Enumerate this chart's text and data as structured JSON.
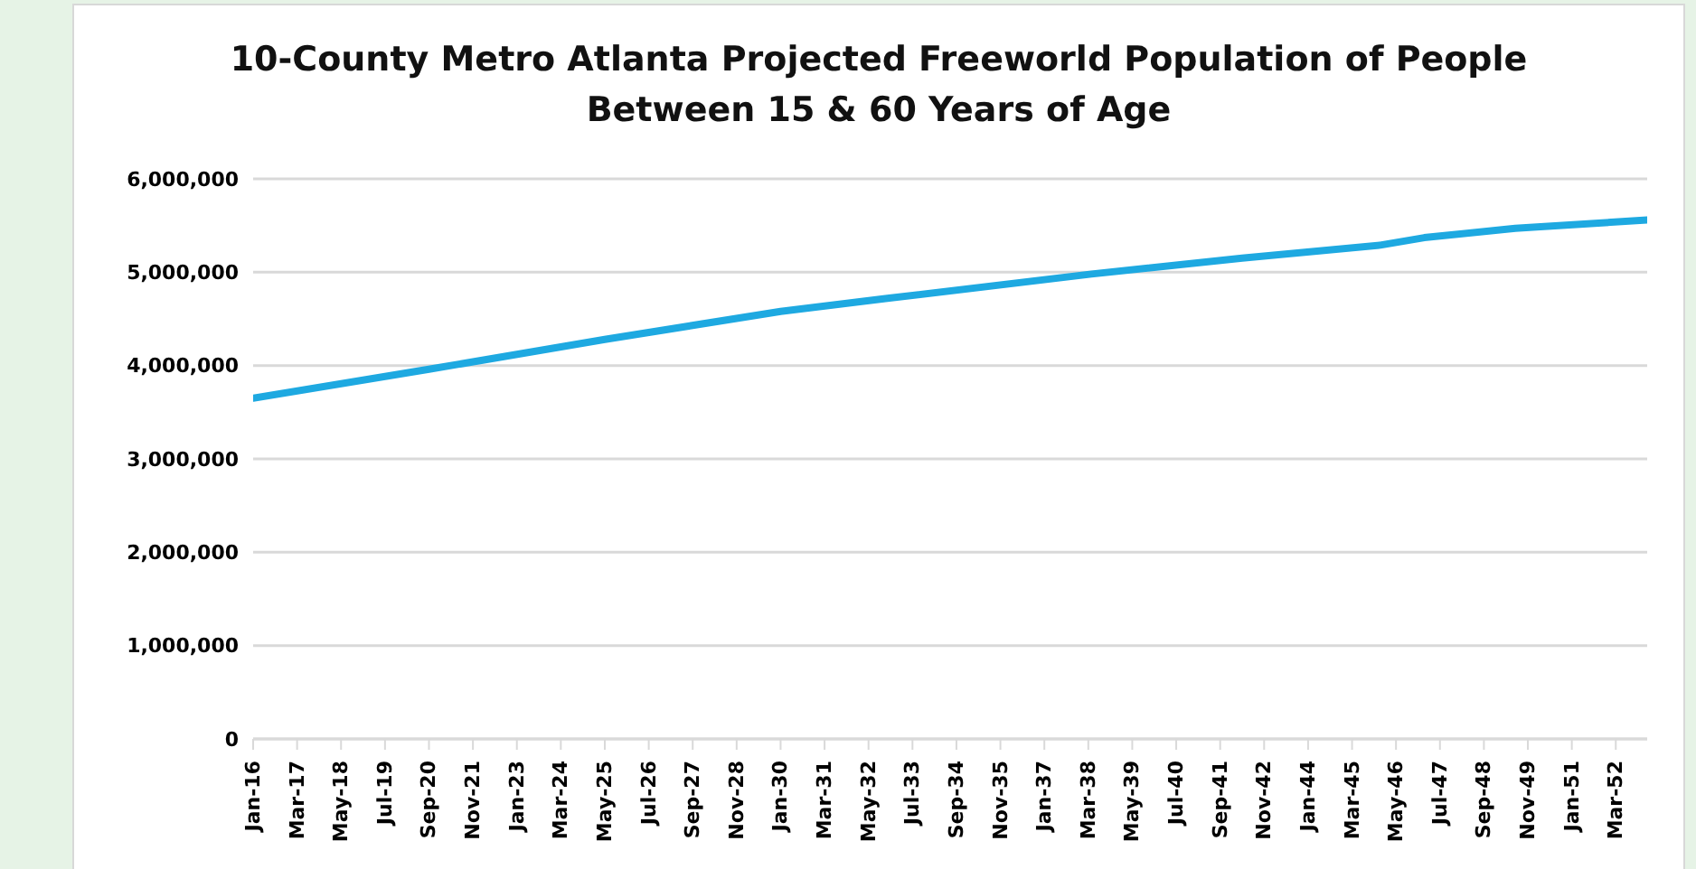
{
  "chart_data": {
    "type": "line",
    "title": "10-County Metro Atlanta Projected Freeworld Population of People Between 15 & 60 Years of Age",
    "x": [
      "2016-01",
      "2020-09",
      "2025-05",
      "2030-01",
      "2032-11",
      "2038-04",
      "2042-04",
      "2045-12",
      "2047-02",
      "2049-07",
      "2053-01"
    ],
    "series": [
      {
        "color": "#1ea9e1",
        "values": [
          3650000,
          3960000,
          4280000,
          4580000,
          4720000,
          4980000,
          5150000,
          5290000,
          5370000,
          5470000,
          5560000
        ]
      }
    ],
    "xlim": [
      "2016-01",
      "2053-01"
    ],
    "xticks": [
      {
        "value": "2016-01",
        "label": "Jan-16"
      },
      {
        "value": "2017-03",
        "label": "Mar-17"
      },
      {
        "value": "2018-05",
        "label": "May-18"
      },
      {
        "value": "2019-07",
        "label": "Jul-19"
      },
      {
        "value": "2020-09",
        "label": "Sep-20"
      },
      {
        "value": "2021-11",
        "label": "Nov-21"
      },
      {
        "value": "2023-01",
        "label": "Jan-23"
      },
      {
        "value": "2024-03",
        "label": "Mar-24"
      },
      {
        "value": "2025-05",
        "label": "May-25"
      },
      {
        "value": "2026-07",
        "label": "Jul-26"
      },
      {
        "value": "2027-09",
        "label": "Sep-27"
      },
      {
        "value": "2028-11",
        "label": "Nov-28"
      },
      {
        "value": "2030-01",
        "label": "Jan-30"
      },
      {
        "value": "2031-03",
        "label": "Mar-31"
      },
      {
        "value": "2032-05",
        "label": "May-32"
      },
      {
        "value": "2033-07",
        "label": "Jul-33"
      },
      {
        "value": "2034-09",
        "label": "Sep-34"
      },
      {
        "value": "2035-11",
        "label": "Nov-35"
      },
      {
        "value": "2037-01",
        "label": "Jan-37"
      },
      {
        "value": "2038-03",
        "label": "Mar-38"
      },
      {
        "value": "2039-05",
        "label": "May-39"
      },
      {
        "value": "2040-07",
        "label": "Jul-40"
      },
      {
        "value": "2041-09",
        "label": "Sep-41"
      },
      {
        "value": "2042-11",
        "label": "Nov-42"
      },
      {
        "value": "2044-01",
        "label": "Jan-44"
      },
      {
        "value": "2045-03",
        "label": "Mar-45"
      },
      {
        "value": "2046-05",
        "label": "May-46"
      },
      {
        "value": "2047-07",
        "label": "Jul-47"
      },
      {
        "value": "2048-09",
        "label": "Sep-48"
      },
      {
        "value": "2049-11",
        "label": "Nov-49"
      },
      {
        "value": "2051-01",
        "label": "Jan-51"
      },
      {
        "value": "2052-03",
        "label": "Mar-52"
      }
    ],
    "ylim": [
      0,
      6000000
    ],
    "yticks": [
      {
        "value": 0,
        "label": "0"
      },
      {
        "value": 1000000,
        "label": "1,000,000"
      },
      {
        "value": 2000000,
        "label": "2,000,000"
      },
      {
        "value": 3000000,
        "label": "3,000,000"
      },
      {
        "value": 4000000,
        "label": "4,000,000"
      },
      {
        "value": 5000000,
        "label": "5,000,000"
      },
      {
        "value": 6000000,
        "label": "6,000,000"
      }
    ],
    "grid": "y",
    "legend": false,
    "marker": "none",
    "line_style": "solid"
  }
}
